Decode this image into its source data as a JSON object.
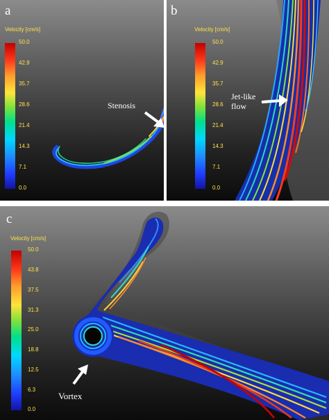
{
  "panels": {
    "a": {
      "letter": "a",
      "velocity_title": "Velocity [cm/s]",
      "ticks": [
        "50.0",
        "42.9",
        "35.7",
        "28.6",
        "21.4",
        "14.3",
        "7.1",
        "0.0"
      ],
      "annotation": "Stenosis"
    },
    "b": {
      "letter": "b",
      "velocity_title": "Velocity [cm/s]",
      "ticks": [
        "50.0",
        "42.9",
        "35.7",
        "28.6",
        "21.4",
        "14.3",
        "7.1",
        "0.0"
      ],
      "annotation_line1": "Jet-like",
      "annotation_line2": "flow"
    },
    "c": {
      "letter": "c",
      "velocity_title": "Velocity [cm/s]",
      "ticks": [
        "50.0",
        "43.8",
        "37.5",
        "31.3",
        "25.0",
        "18.8",
        "12.5",
        "6.3",
        "0.0"
      ],
      "annotation": "Vortex"
    }
  },
  "colorscale": {
    "low": "#1414a0",
    "mid": "#7fe23a",
    "high": "#c30000"
  }
}
